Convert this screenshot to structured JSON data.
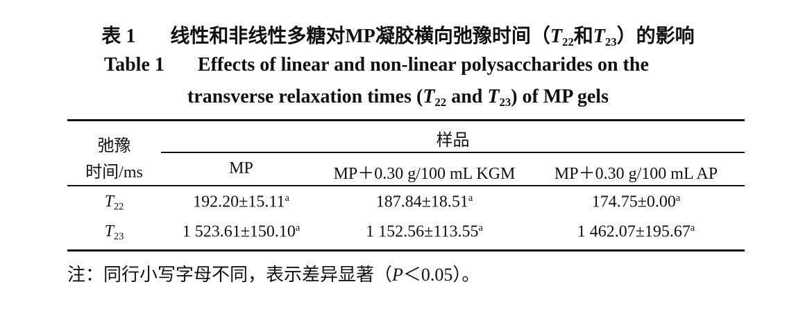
{
  "title_cn": {
    "label": "表 1",
    "before": "线性和非线性多糖对MP凝胶横向弛豫时间（",
    "var1": "T",
    "sub1": "22",
    "mid": "和",
    "var2": "T",
    "sub2": "23",
    "after": "）的影响"
  },
  "title_en": {
    "label": "Table 1",
    "line1": "Effects of linear and non-linear polysaccharides on the",
    "before": "transverse relaxation times (",
    "var1": "T",
    "sub1": "22",
    "mid": " and ",
    "var2": "T",
    "sub2": "23",
    "after": ") of MP gels"
  },
  "table": {
    "corner": [
      "弛豫",
      "时间/ms"
    ],
    "group": "样品",
    "columns": [
      "MP",
      "MP＋0.30 g/100 mL KGM",
      "MP＋0.30 g/100 mL AP"
    ],
    "rows": [
      {
        "var": "T",
        "sub": "22",
        "cells": [
          {
            "value": "192.20±15.11",
            "sup": "a"
          },
          {
            "value": "187.84±18.51",
            "sup": "a"
          },
          {
            "value": "174.75±0.00",
            "sup": "a"
          }
        ]
      },
      {
        "var": "T",
        "sub": "23",
        "cells": [
          {
            "value": "1 523.61±150.10",
            "sup": "a"
          },
          {
            "value": "1 152.56±113.55",
            "sup": "a"
          },
          {
            "value": "1 462.07±195.67",
            "sup": "a"
          }
        ]
      }
    ]
  },
  "note": {
    "before": "注：同行小写字母不同，表示差异显著（",
    "var": "P",
    "after": "＜0.05）。"
  }
}
